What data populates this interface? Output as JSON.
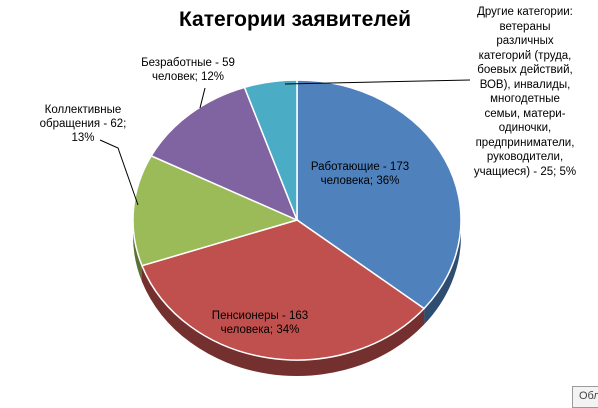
{
  "chart_data": {
    "type": "pie",
    "title": "Категории заявителей",
    "slices": [
      {
        "name": "Работающие",
        "value": 173,
        "percent": 36,
        "color": "#4f81bd",
        "label": "Работающие - 173 человека; 36%"
      },
      {
        "name": "Пенсионеры",
        "value": 163,
        "percent": 34,
        "color": "#c0504d",
        "label": "Пенсионеры - 163 человека; 34%"
      },
      {
        "name": "Коллективные обращения",
        "value": 62,
        "percent": 13,
        "color": "#9bbb59",
        "label": "Коллективные обращения - 62; 13%"
      },
      {
        "name": "Безработные",
        "value": 59,
        "percent": 12,
        "color": "#8064a2",
        "label": "Безработные - 59 человек; 12%"
      },
      {
        "name": "Другие категории",
        "value": 25,
        "percent": 5,
        "color": "#4bacc6",
        "label": "Другие категории: ветераны различных категорий (труда, боевых действий, ВОВ), инвалиды, многодетные семьи, матери-одиночки, предприниматели, руководители, учащиеся) - 25; 5%"
      }
    ],
    "labels_display": {
      "working": [
        "Работающие - 173",
        "человека; 36%"
      ],
      "pensioners": [
        "Пенсионеры - 163",
        "человека; 34%"
      ],
      "collective": [
        "Коллективные",
        "обращения - 62;",
        "13%"
      ],
      "unemployed": [
        "Безработные - 59",
        "человек; 12%"
      ],
      "other": [
        "Другие категории:",
        "ветераны",
        "различных",
        "категорий (труда,",
        "боевых действий,",
        "ВОВ), инвалиды,",
        "многодетные",
        "семьи, матери-",
        "одиночки,",
        "предприниматели,",
        "руководители,",
        "учащиеся) - 25; 5%"
      ]
    }
  },
  "ui": {
    "tab_label": "Обл"
  }
}
